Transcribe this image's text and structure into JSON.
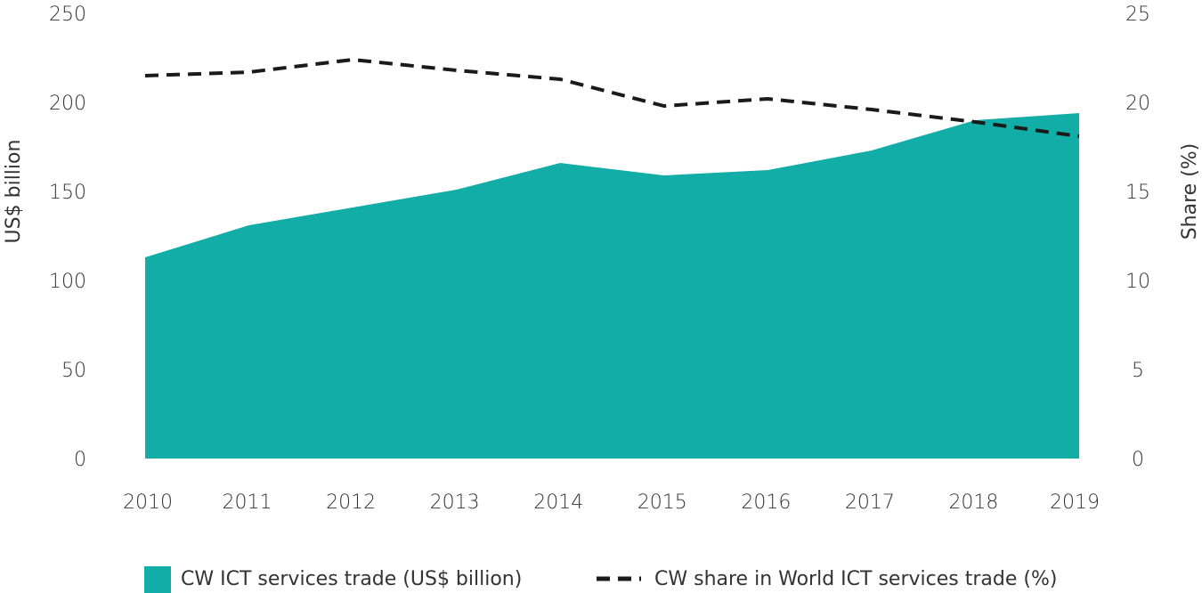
{
  "chart_data": {
    "type": "area",
    "categories": [
      "2010",
      "2011",
      "2012",
      "2013",
      "2014",
      "2015",
      "2016",
      "2017",
      "2018",
      "2019"
    ],
    "series": [
      {
        "name": "CW ICT services trade (US$ billion)",
        "type": "area",
        "axis": "left",
        "color": "#13ADA8",
        "values": [
          113,
          131,
          141,
          151,
          166,
          159,
          162,
          173,
          190,
          194
        ]
      },
      {
        "name": "CW share in World ICT services trade (%)",
        "type": "line",
        "style": "dashed",
        "axis": "right",
        "color": "#1a1a1a",
        "values": [
          21.5,
          21.7,
          22.4,
          21.8,
          21.3,
          19.8,
          20.2,
          19.6,
          18.9,
          18.1
        ]
      }
    ],
    "ylabel": "US$ billion",
    "ylim": [
      0,
      250
    ],
    "yticks": [
      "0",
      "50",
      "100",
      "150",
      "200",
      "250"
    ],
    "y2label": "Share (%)",
    "y2lim": [
      0,
      25
    ],
    "y2ticks": [
      "0",
      "5",
      "10",
      "15",
      "20",
      "25"
    ],
    "grid": false,
    "legend_position": "bottom"
  }
}
